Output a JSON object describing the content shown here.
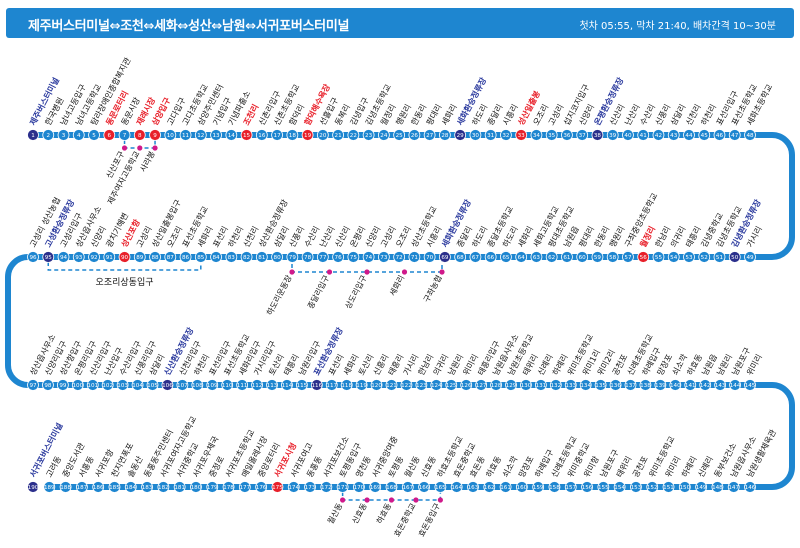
{
  "header": {
    "title": "제주버스터미널⇔조천⇔세화⇔성산⇔남원⇔서귀포버스터미널",
    "info": "첫차 05:55, 막차 21:40, 배차간격 10~30분"
  },
  "colors": {
    "route_line": "#1e86d0",
    "station_normal": "#1e86d0",
    "station_transfer": "#2b2f8c",
    "station_highlight": "#e8202a",
    "branch_dot": "#d0198a",
    "label_normal": "#111111",
    "label_transfer": "#2b3a9e",
    "label_highlight": "#e8202a"
  },
  "branches": [
    {
      "stops": [
        "신산포구",
        "제주여자고등학교",
        "사라봉"
      ]
    },
    {
      "stops": [
        "하도리운동장",
        "종달리입구",
        "상도리입구",
        "세화리",
        "구좌농협"
      ]
    },
    {
      "stops": [
        "오조리상동입구"
      ]
    },
    {
      "stops": [
        "월산동",
        "신효동",
        "하효동",
        "효돈중학교",
        "효돈동입구"
      ]
    }
  ],
  "rows": [
    {
      "stations": [
        {
          "n": 1,
          "name": "제주버스터미널",
          "t": "T"
        },
        {
          "n": 2,
          "name": "한국병원"
        },
        {
          "n": 3,
          "name": "남녀고등입구"
        },
        {
          "n": 4,
          "name": "남녀고등학교"
        },
        {
          "n": 5,
          "name": "탐라장애인종합복지관"
        },
        {
          "n": 6,
          "name": "동문로터리",
          "t": "H"
        },
        {
          "n": 7,
          "name": "동문시장"
        },
        {
          "n": 8,
          "name": "재래시장",
          "t": "H"
        },
        {
          "n": 9,
          "name": "삼양입구",
          "t": "H"
        },
        {
          "n": 10,
          "name": "고다입구"
        },
        {
          "n": 11,
          "name": "고다초등학교"
        },
        {
          "n": 12,
          "name": "삼양주민센터"
        },
        {
          "n": 13,
          "name": "기념입구"
        },
        {
          "n": 14,
          "name": "기념파출소"
        },
        {
          "n": 15,
          "name": "조천리",
          "t": "H"
        },
        {
          "n": 16,
          "name": "신촌리입구"
        },
        {
          "n": 17,
          "name": "신촌초등학교"
        },
        {
          "n": 18,
          "name": "함덕리"
        },
        {
          "n": 19,
          "name": "함덕해수욕장",
          "t": "H"
        },
        {
          "n": 20,
          "name": "선흘입구"
        },
        {
          "n": 21,
          "name": "동복리"
        },
        {
          "n": 22,
          "name": "김녕입구"
        },
        {
          "n": 23,
          "name": "김녕초등학교"
        },
        {
          "n": 24,
          "name": "월정리"
        },
        {
          "n": 25,
          "name": "행원리"
        },
        {
          "n": 26,
          "name": "한동리"
        },
        {
          "n": 27,
          "name": "평대리"
        },
        {
          "n": 28,
          "name": "세화리"
        },
        {
          "n": 29,
          "name": "세화환승정류장",
          "t": "T"
        },
        {
          "n": 30,
          "name": "하도리"
        },
        {
          "n": 31,
          "name": "종달리"
        },
        {
          "n": 32,
          "name": "시흥리"
        },
        {
          "n": 33,
          "name": "성산일출봉",
          "t": "H"
        },
        {
          "n": 34,
          "name": "오조리"
        },
        {
          "n": 35,
          "name": "고성리"
        },
        {
          "n": 36,
          "name": "섭지코지입구"
        },
        {
          "n": 37,
          "name": "신양리"
        },
        {
          "n": 38,
          "name": "온평환승정류장",
          "t": "T"
        },
        {
          "n": 39,
          "name": "신산리"
        },
        {
          "n": 40,
          "name": "난산리"
        },
        {
          "n": 41,
          "name": "수산리"
        },
        {
          "n": 42,
          "name": "신풍리"
        },
        {
          "n": 43,
          "name": "삼달리"
        },
        {
          "n": 44,
          "name": "신천리"
        },
        {
          "n": 45,
          "name": "하천리"
        },
        {
          "n": 46,
          "name": "표선리입구"
        },
        {
          "n": 47,
          "name": "표선초등학교"
        },
        {
          "n": 48,
          "name": "세화초등학교"
        }
      ]
    },
    {
      "stations": [
        {
          "n": 49,
          "name": "가시리"
        },
        {
          "n": 50,
          "name": "김녕환승정류장",
          "t": "T"
        },
        {
          "n": 51,
          "name": "김녕초등학교"
        },
        {
          "n": 52,
          "name": "김녕중학교"
        },
        {
          "n": 53,
          "name": "태흥리"
        },
        {
          "n": 54,
          "name": "의귀리"
        },
        {
          "n": 55,
          "name": "한남리"
        },
        {
          "n": 56,
          "name": "월정리",
          "t": "H"
        },
        {
          "n": 57,
          "name": "구좌중앙초등학교"
        },
        {
          "n": 58,
          "name": "행원리"
        },
        {
          "n": 59,
          "name": "한동리"
        },
        {
          "n": 60,
          "name": "평대리"
        },
        {
          "n": 61,
          "name": "남원읍"
        },
        {
          "n": 62,
          "name": "평대초등학교"
        },
        {
          "n": 63,
          "name": "세화고등학교"
        },
        {
          "n": 64,
          "name": "세화리"
        },
        {
          "n": 65,
          "name": "하도리"
        },
        {
          "n": 66,
          "name": "종달초등학교"
        },
        {
          "n": 67,
          "name": "하도리"
        },
        {
          "n": 68,
          "name": "종달리"
        },
        {
          "n": 69,
          "name": "세화환승정류장",
          "t": "T"
        },
        {
          "n": 70,
          "name": "시흥리"
        },
        {
          "n": 71,
          "name": "성산초등학교"
        },
        {
          "n": 72,
          "name": "오조리"
        },
        {
          "n": 73,
          "name": "고성리"
        },
        {
          "n": 74,
          "name": "신양리"
        },
        {
          "n": 75,
          "name": "온평리"
        },
        {
          "n": 76,
          "name": "신산리"
        },
        {
          "n": 77,
          "name": "난산리"
        },
        {
          "n": 78,
          "name": "수산리"
        },
        {
          "n": 79,
          "name": "신풍리"
        },
        {
          "n": 80,
          "name": "삼달리"
        },
        {
          "n": 81,
          "name": "성산환승정류장"
        },
        {
          "n": 82,
          "name": "신천리"
        },
        {
          "n": 83,
          "name": "하천리"
        },
        {
          "n": 84,
          "name": "표선리"
        },
        {
          "n": 85,
          "name": "세화리"
        },
        {
          "n": 86,
          "name": "표선초등학교"
        },
        {
          "n": 87,
          "name": "오조리"
        },
        {
          "n": 88,
          "name": "성산일출봉입구"
        },
        {
          "n": 89,
          "name": "고성리"
        },
        {
          "n": 90,
          "name": "성산포항",
          "t": "H"
        },
        {
          "n": 91,
          "name": "광치기해변"
        },
        {
          "n": 92,
          "name": "신양리"
        },
        {
          "n": 93,
          "name": "성산읍사무소"
        },
        {
          "n": 94,
          "name": "고성리입구"
        },
        {
          "n": 95,
          "name": "고성환승정류장",
          "t": "T"
        },
        {
          "n": 96,
          "name": "고성리 성산농협"
        }
      ]
    },
    {
      "stations": [
        {
          "n": 97,
          "name": "성산읍사무소"
        },
        {
          "n": 98,
          "name": "신양리입구"
        },
        {
          "n": 99,
          "name": "성산항입구"
        },
        {
          "n": 100,
          "name": "온평리입구"
        },
        {
          "n": 101,
          "name": "신산리입구"
        },
        {
          "n": 102,
          "name": "난산입구"
        },
        {
          "n": 103,
          "name": "수산리입구"
        },
        {
          "n": 104,
          "name": "신풍리입구"
        },
        {
          "n": 105,
          "name": "삼달리"
        },
        {
          "n": 106,
          "name": "신산환승정류장",
          "t": "T"
        },
        {
          "n": 107,
          "name": "신천리입구"
        },
        {
          "n": 108,
          "name": "하천리"
        },
        {
          "n": 109,
          "name": "표선리입구"
        },
        {
          "n": 110,
          "name": "표선초등학교"
        },
        {
          "n": 111,
          "name": "세화리입구"
        },
        {
          "n": 112,
          "name": "가시리입구"
        },
        {
          "n": 113,
          "name": "토산리"
        },
        {
          "n": 114,
          "name": "태흥리"
        },
        {
          "n": 115,
          "name": "남원리입구"
        },
        {
          "n": 116,
          "name": "표선환승정류장",
          "t": "T"
        },
        {
          "n": 117,
          "name": "표선리"
        },
        {
          "n": 118,
          "name": "세화리"
        },
        {
          "n": 119,
          "name": "토산리"
        },
        {
          "n": 120,
          "name": "신흥리"
        },
        {
          "n": 121,
          "name": "태흥리"
        },
        {
          "n": 122,
          "name": "가시리"
        },
        {
          "n": 123,
          "name": "한남리"
        },
        {
          "n": 124,
          "name": "의귀리"
        },
        {
          "n": 125,
          "name": "남원리"
        },
        {
          "n": 126,
          "name": "위미리"
        },
        {
          "n": 127,
          "name": "태흥리입구"
        },
        {
          "n": 128,
          "name": "남원읍사무소"
        },
        {
          "n": 129,
          "name": "남원초등학교"
        },
        {
          "n": 130,
          "name": "태위리"
        },
        {
          "n": 131,
          "name": "신례리"
        },
        {
          "n": 132,
          "name": "하례리"
        },
        {
          "n": 133,
          "name": "위미초등학교"
        },
        {
          "n": 134,
          "name": "위미1리"
        },
        {
          "n": 135,
          "name": "위미2리"
        },
        {
          "n": 136,
          "name": "공천포"
        },
        {
          "n": 137,
          "name": "신례초등학교"
        },
        {
          "n": 138,
          "name": "하례입구"
        },
        {
          "n": 139,
          "name": "망장포"
        },
        {
          "n": 140,
          "name": "쇠소깍"
        },
        {
          "n": 141,
          "name": "하효동"
        },
        {
          "n": 142,
          "name": "남원읍"
        },
        {
          "n": 143,
          "name": "남원리"
        },
        {
          "n": 144,
          "name": "남원포구"
        },
        {
          "n": 145,
          "name": "위미리"
        }
      ]
    },
    {
      "stations": [
        {
          "n": 146,
          "name": "남원생활체육관"
        },
        {
          "n": 147,
          "name": "남원읍사무소"
        },
        {
          "n": 148,
          "name": "동부보건소"
        },
        {
          "n": 149,
          "name": "신례리"
        },
        {
          "n": 150,
          "name": "하례리"
        },
        {
          "n": 151,
          "name": "위미리"
        },
        {
          "n": 152,
          "name": "위미초등학교"
        },
        {
          "n": 153,
          "name": "공천포"
        },
        {
          "n": 154,
          "name": "태위리"
        },
        {
          "n": 155,
          "name": "남원포구"
        },
        {
          "n": 156,
          "name": "위미항"
        },
        {
          "n": 157,
          "name": "위미중학교"
        },
        {
          "n": 158,
          "name": "신례초등학교"
        },
        {
          "n": 159,
          "name": "하례입구"
        },
        {
          "n": 160,
          "name": "망장포"
        },
        {
          "n": 161,
          "name": "쇠소깍"
        },
        {
          "n": 162,
          "name": "하효동"
        },
        {
          "n": 163,
          "name": "효돈동"
        },
        {
          "n": 164,
          "name": "효돈중학교"
        },
        {
          "n": 165,
          "name": "하효초등학교"
        },
        {
          "n": 166,
          "name": "신효동"
        },
        {
          "n": 167,
          "name": "월산동"
        },
        {
          "n": 168,
          "name": "토평동"
        },
        {
          "n": 169,
          "name": "서귀중앙여중"
        },
        {
          "n": 170,
          "name": "영천동"
        },
        {
          "n": 171,
          "name": "토평동입구"
        },
        {
          "n": 172,
          "name": "서귀포보건소"
        },
        {
          "n": 173,
          "name": "동홍동"
        },
        {
          "n": 174,
          "name": "서귀포여고"
        },
        {
          "n": 175,
          "name": "서귀포시청",
          "t": "H"
        },
        {
          "n": 176,
          "name": "중앙로터리"
        },
        {
          "n": 177,
          "name": "매일올레시장"
        },
        {
          "n": 178,
          "name": "서귀포초등학교"
        },
        {
          "n": 179,
          "name": "중정로"
        },
        {
          "n": 180,
          "name": "서귀포우체국"
        },
        {
          "n": 181,
          "name": "서귀중학교"
        },
        {
          "n": 182,
          "name": "서귀포여자고등학교"
        },
        {
          "n": 183,
          "name": "동홍동주민센터"
        },
        {
          "n": 184,
          "name": "솔동산"
        },
        {
          "n": 185,
          "name": "천지연폭포"
        },
        {
          "n": 186,
          "name": "서귀포항"
        },
        {
          "n": 187,
          "name": "서홍동"
        },
        {
          "n": 188,
          "name": "중앙도서관"
        },
        {
          "n": 189,
          "name": "고려동"
        },
        {
          "n": 190,
          "name": "서귀포버스터미널",
          "t": "T"
        }
      ]
    }
  ]
}
